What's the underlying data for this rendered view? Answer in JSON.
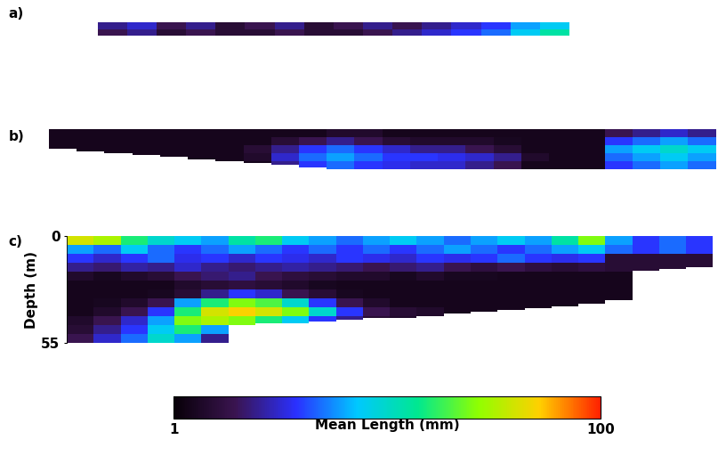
{
  "chart_data": [
    {
      "type": "heatmap",
      "label": "a)",
      "ylim": [
        0,
        5
      ],
      "tick_labels": false,
      "bottom_depth": null,
      "cells": [
        [
          20,
          25,
          15,
          20,
          10,
          15,
          20,
          10,
          15,
          20,
          15,
          20,
          25,
          30,
          40,
          45
        ],
        [
          15,
          20,
          10,
          15,
          10,
          10,
          15,
          10,
          10,
          15,
          20,
          25,
          30,
          35,
          45,
          55
        ]
      ]
    },
    {
      "type": "heatmap",
      "label": "b)",
      "ylim": [
        0,
        20
      ],
      "tick_labels": false,
      "bottom_depth": [
        10,
        11,
        12,
        13,
        14,
        15,
        16,
        17,
        18,
        19,
        20,
        20,
        20,
        20,
        20,
        20,
        20,
        20,
        20,
        20,
        20,
        20,
        20,
        20
      ],
      "cells": [
        [
          5,
          5,
          5,
          5,
          5,
          5,
          5,
          5,
          5,
          5,
          8,
          8,
          5,
          5,
          5,
          5,
          5,
          5,
          5,
          5,
          15,
          20,
          25,
          20
        ],
        [
          5,
          5,
          5,
          5,
          5,
          5,
          5,
          5,
          10,
          15,
          20,
          15,
          10,
          8,
          8,
          8,
          6,
          5,
          5,
          5,
          30,
          35,
          40,
          35
        ],
        [
          5,
          5,
          5,
          5,
          5,
          5,
          5,
          10,
          20,
          30,
          35,
          30,
          25,
          20,
          20,
          15,
          10,
          5,
          5,
          5,
          40,
          45,
          50,
          45
        ],
        [
          5,
          5,
          5,
          5,
          5,
          5,
          5,
          8,
          25,
          35,
          40,
          35,
          30,
          30,
          28,
          25,
          20,
          8,
          5,
          5,
          35,
          40,
          45,
          40
        ],
        [
          5,
          5,
          5,
          5,
          5,
          5,
          5,
          5,
          20,
          30,
          35,
          30,
          28,
          25,
          25,
          20,
          15,
          5,
          5,
          5,
          30,
          35,
          40,
          35
        ]
      ]
    },
    {
      "type": "heatmap",
      "label": "c)",
      "ylabel": "Depth (m)",
      "ylim": [
        0,
        55
      ],
      "yticks": [
        0,
        55
      ],
      "tick_labels": "y",
      "bottom_depth": [
        55,
        55,
        55,
        55,
        55,
        55,
        46,
        45,
        45,
        44,
        43,
        42,
        42,
        41,
        40,
        39,
        38,
        37,
        36,
        35,
        33,
        18,
        17,
        16
      ],
      "cells": [
        [
          80,
          75,
          60,
          50,
          45,
          40,
          55,
          60,
          45,
          40,
          35,
          40,
          45,
          40,
          35,
          40,
          45,
          40,
          55,
          70,
          40,
          30,
          35,
          30
        ],
        [
          40,
          35,
          45,
          35,
          30,
          35,
          40,
          35,
          30,
          35,
          30,
          35,
          30,
          35,
          40,
          35,
          30,
          35,
          40,
          45,
          35,
          30,
          35,
          30
        ],
        [
          30,
          25,
          30,
          35,
          28,
          30,
          25,
          30,
          28,
          25,
          30,
          28,
          25,
          30,
          28,
          30,
          35,
          30,
          28,
          30,
          10,
          10,
          10,
          10
        ],
        [
          20,
          18,
          22,
          20,
          25,
          20,
          18,
          20,
          22,
          20,
          18,
          15,
          18,
          20,
          15,
          12,
          15,
          12,
          10,
          12,
          10,
          10,
          10,
          10
        ],
        [
          8,
          6,
          8,
          10,
          15,
          18,
          20,
          15,
          12,
          10,
          8,
          8,
          6,
          8,
          6,
          6,
          5,
          5,
          5,
          5,
          5,
          5,
          5,
          5
        ],
        [
          5,
          5,
          5,
          5,
          8,
          10,
          12,
          10,
          8,
          6,
          5,
          5,
          5,
          5,
          5,
          5,
          5,
          5,
          5,
          5,
          5,
          5,
          5,
          5
        ],
        [
          5,
          5,
          5,
          6,
          10,
          20,
          30,
          25,
          15,
          10,
          6,
          5,
          5,
          5,
          5,
          5,
          5,
          5,
          5,
          5,
          5,
          5,
          5,
          5
        ],
        [
          5,
          6,
          8,
          15,
          40,
          60,
          70,
          65,
          50,
          30,
          15,
          8,
          5,
          5,
          5,
          5,
          5,
          5,
          5,
          5,
          5,
          5,
          5,
          5
        ],
        [
          5,
          8,
          15,
          30,
          60,
          80,
          85,
          80,
          70,
          50,
          30,
          15,
          10,
          8,
          5,
          5,
          5,
          5,
          5,
          5,
          5,
          5,
          5,
          5
        ],
        [
          8,
          15,
          25,
          40,
          70,
          75,
          70,
          60,
          45,
          30,
          20,
          10,
          8,
          5,
          5,
          5,
          5,
          5,
          5,
          5,
          5,
          5,
          5,
          5
        ],
        [
          10,
          20,
          30,
          45,
          60,
          40,
          30,
          20,
          15,
          10,
          8,
          6,
          5,
          5,
          5,
          5,
          5,
          5,
          5,
          5,
          5,
          5,
          5,
          5
        ],
        [
          15,
          25,
          35,
          50,
          40,
          20,
          10,
          8,
          6,
          5,
          5,
          5,
          5,
          5,
          5,
          5,
          5,
          5,
          5,
          5,
          5,
          5,
          5,
          5
        ]
      ]
    }
  ],
  "colorbar": {
    "label": "Mean Length (mm)",
    "range": [
      1,
      100
    ],
    "ticks": [
      1,
      100
    ]
  }
}
